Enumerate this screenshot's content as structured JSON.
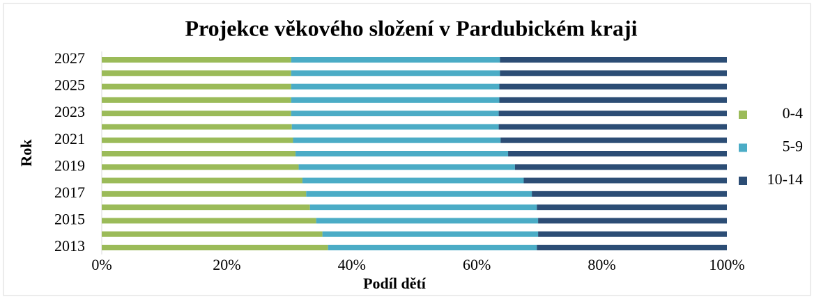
{
  "chart_data": {
    "type": "bar",
    "orientation": "horizontal",
    "stacked": true,
    "title": "Projekce věkového složení v Pardubickém kraji",
    "x_label": "Podíl dětí",
    "y_label": "Rok",
    "categories": [
      "2013",
      null,
      "2015",
      null,
      "2017",
      null,
      "2019",
      null,
      "2021",
      null,
      "2023",
      null,
      "2025",
      null,
      "2027"
    ],
    "series": [
      {
        "name": "0-4",
        "color": "#9bbb59",
        "values": [
          36.2,
          35.3,
          34.3,
          33.3,
          32.7,
          32.1,
          31.5,
          31.0,
          30.6,
          30.4,
          30.3,
          30.3,
          30.3,
          30.3,
          30.3
        ]
      },
      {
        "name": "5-9",
        "color": "#4bacc6",
        "values": [
          33.4,
          34.5,
          35.5,
          36.3,
          36.1,
          35.4,
          34.6,
          34.0,
          33.2,
          33.1,
          33.2,
          33.3,
          33.3,
          33.4,
          33.4
        ]
      },
      {
        "name": "10-14",
        "color": "#2c4d75",
        "values": [
          30.4,
          30.2,
          30.2,
          30.4,
          31.2,
          32.5,
          33.9,
          35.0,
          36.2,
          36.5,
          36.5,
          36.4,
          36.4,
          36.3,
          36.3
        ]
      }
    ],
    "xlim": [
      0,
      100
    ],
    "xticks": [
      {
        "value": 0,
        "label": "0%"
      },
      {
        "value": 20,
        "label": "20%"
      },
      {
        "value": 40,
        "label": "40%"
      },
      {
        "value": 60,
        "label": "60%"
      },
      {
        "value": 80,
        "label": "80%"
      },
      {
        "value": 100,
        "label": "100%"
      }
    ],
    "legend": "right",
    "grid": false
  }
}
